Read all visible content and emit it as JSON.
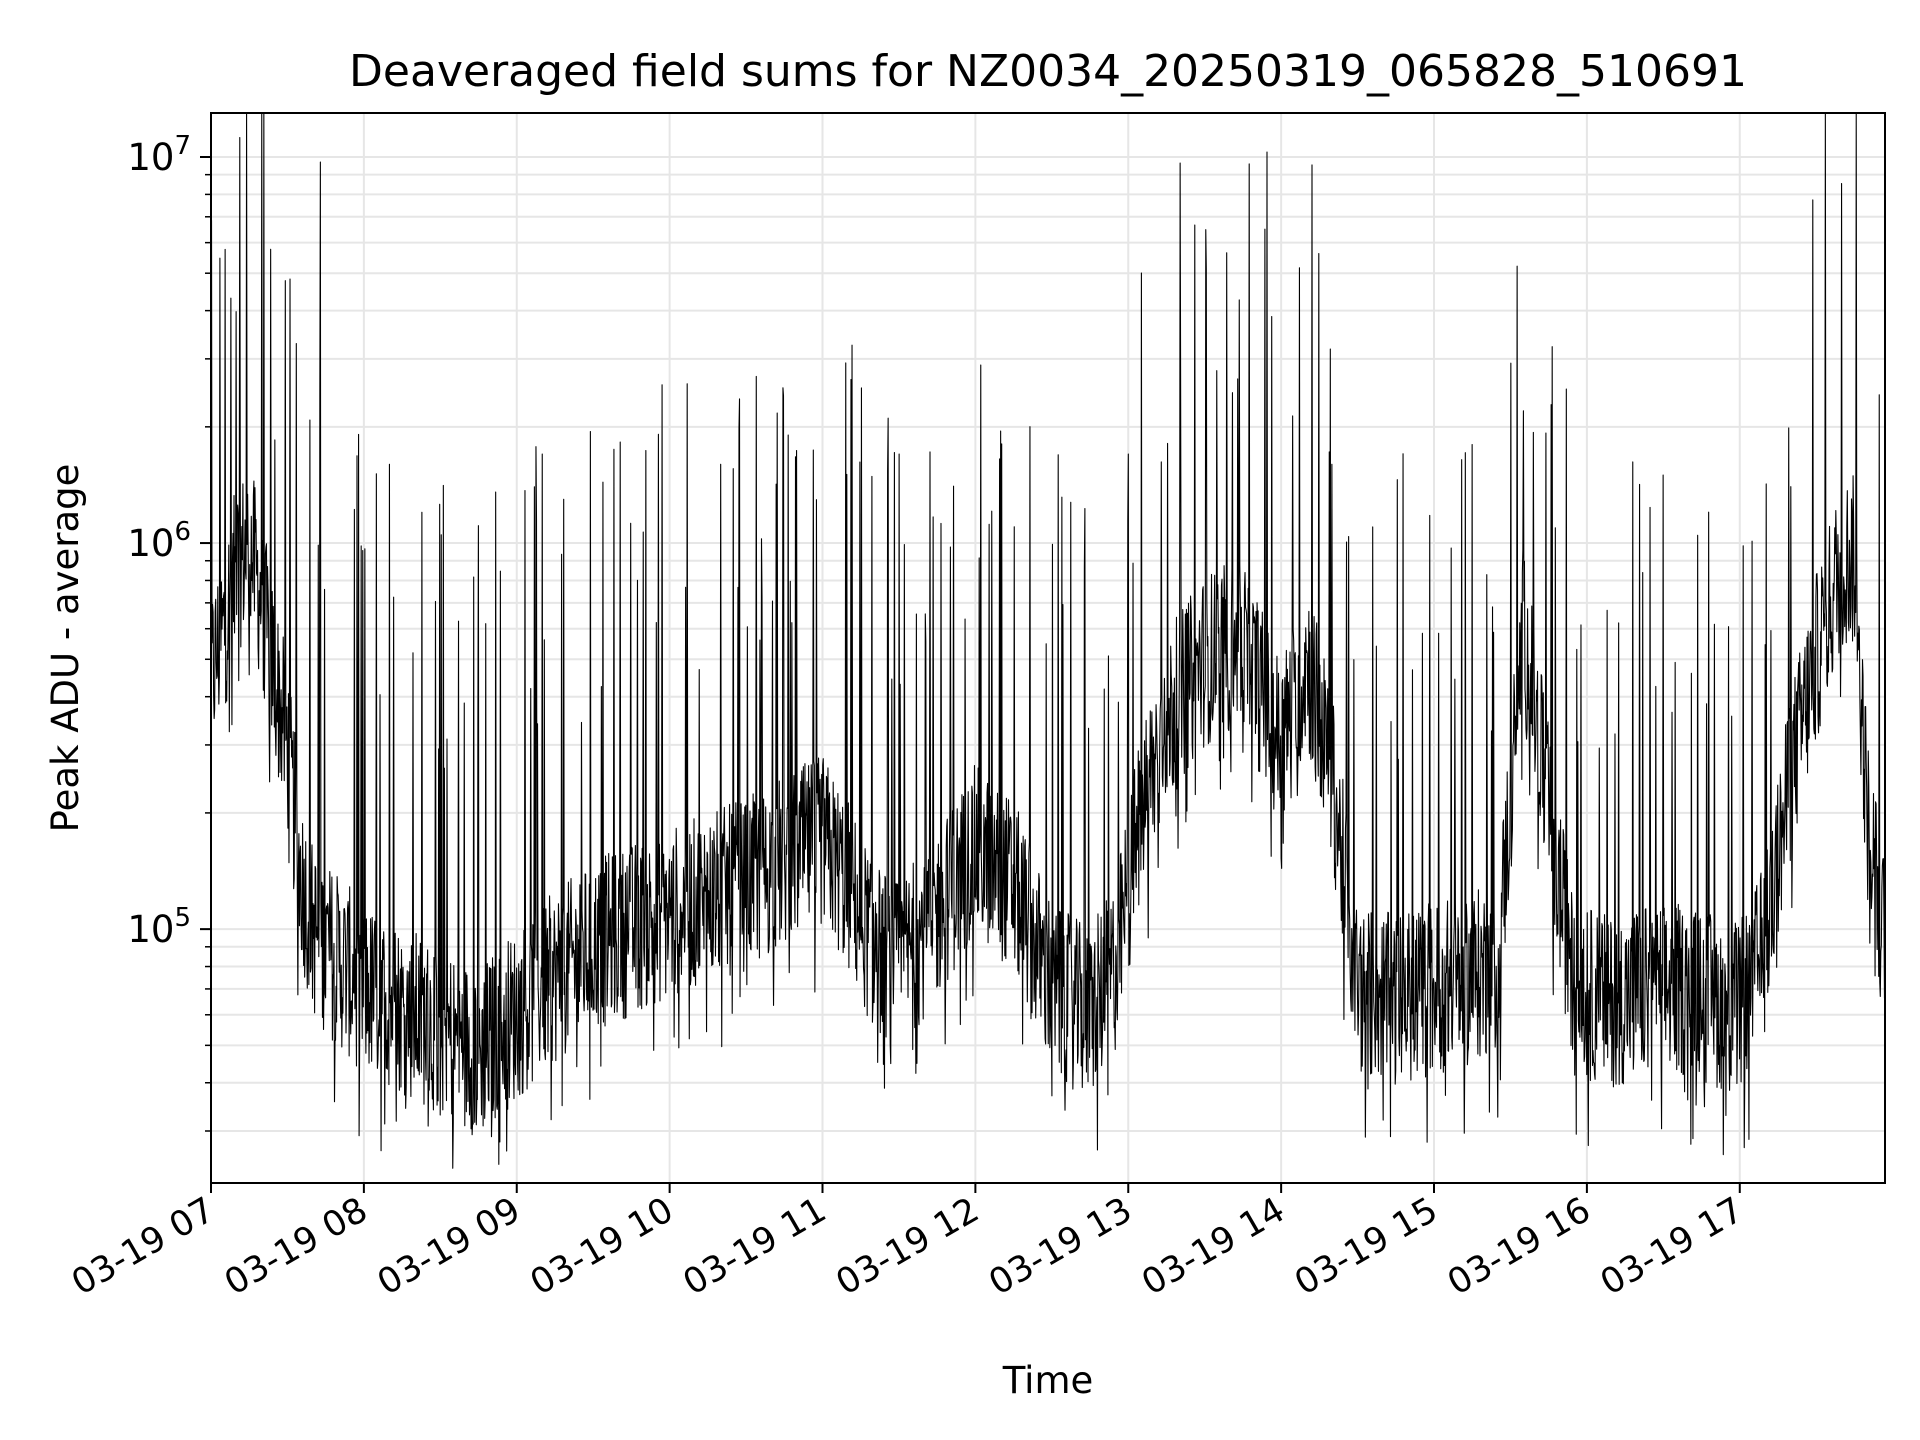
{
  "chart_data": {
    "type": "line",
    "title": "Deaveraged field sums for NZ0034_20250319_065828_510691",
    "xlabel": "Time",
    "ylabel": "Peak ADU - average",
    "yscale": "log",
    "ylim": [
      22000,
      13000000
    ],
    "xlim": [
      "2025-03-19 07:00",
      "2025-03-19 17:57"
    ],
    "grid": true,
    "line_color": "#000000",
    "grid_color": "#e6e6e6",
    "x_ticks": [
      {
        "time": "2025-03-19 07:00",
        "label": "03-19 07"
      },
      {
        "time": "2025-03-19 08:00",
        "label": "03-19 08"
      },
      {
        "time": "2025-03-19 09:00",
        "label": "03-19 09"
      },
      {
        "time": "2025-03-19 10:00",
        "label": "03-19 10"
      },
      {
        "time": "2025-03-19 11:00",
        "label": "03-19 11"
      },
      {
        "time": "2025-03-19 12:00",
        "label": "03-19 12"
      },
      {
        "time": "2025-03-19 13:00",
        "label": "03-19 13"
      },
      {
        "time": "2025-03-19 14:00",
        "label": "03-19 14"
      },
      {
        "time": "2025-03-19 15:00",
        "label": "03-19 15"
      },
      {
        "time": "2025-03-19 16:00",
        "label": "03-19 16"
      },
      {
        "time": "2025-03-19 17:00",
        "label": "03-19 17"
      }
    ],
    "y_ticks": [
      {
        "value": 100000,
        "base": "10",
        "exp": "5"
      },
      {
        "value": 1000000,
        "base": "10",
        "exp": "6"
      },
      {
        "value": 10000000,
        "base": "10",
        "exp": "7"
      }
    ],
    "series": [
      {
        "style": "dense noisy line with narrow upward spikes",
        "points": [
          [
            "07:00",
            450000
          ],
          [
            "07:05",
            600000
          ],
          [
            "07:10",
            850000
          ],
          [
            "07:15",
            1000000
          ],
          [
            "07:20",
            700000
          ],
          [
            "07:25",
            450000
          ],
          [
            "07:30",
            300000
          ],
          [
            "07:35",
            140000
          ],
          [
            "07:40",
            100000
          ],
          [
            "07:45",
            90000
          ],
          [
            "08:00",
            70000
          ],
          [
            "08:15",
            62000
          ],
          [
            "08:30",
            55000
          ],
          [
            "08:45",
            48000
          ],
          [
            "09:00",
            60000
          ],
          [
            "09:15",
            75000
          ],
          [
            "09:30",
            90000
          ],
          [
            "09:45",
            100000
          ],
          [
            "10:00",
            110000
          ],
          [
            "10:15",
            120000
          ],
          [
            "10:30",
            130000
          ],
          [
            "10:45",
            150000
          ],
          [
            "11:00",
            170000
          ],
          [
            "11:10",
            130000
          ],
          [
            "11:20",
            90000
          ],
          [
            "11:30",
            80000
          ],
          [
            "11:45",
            110000
          ],
          [
            "12:00",
            160000
          ],
          [
            "12:15",
            130000
          ],
          [
            "12:30",
            70000
          ],
          [
            "12:45",
            60000
          ],
          [
            "12:55",
            80000
          ],
          [
            "13:05",
            200000
          ],
          [
            "13:15",
            350000
          ],
          [
            "13:30",
            500000
          ],
          [
            "13:45",
            550000
          ],
          [
            "14:00",
            300000
          ],
          [
            "14:10",
            500000
          ],
          [
            "14:20",
            250000
          ],
          [
            "14:30",
            70000
          ],
          [
            "14:45",
            65000
          ],
          [
            "15:00",
            70000
          ],
          [
            "15:15",
            75000
          ],
          [
            "15:25",
            80000
          ],
          [
            "15:35",
            600000
          ],
          [
            "15:45",
            200000
          ],
          [
            "15:55",
            70000
          ],
          [
            "16:10",
            65000
          ],
          [
            "16:25",
            70000
          ],
          [
            "16:35",
            70000
          ],
          [
            "16:50",
            65000
          ],
          [
            "17:00",
            62000
          ],
          [
            "17:10",
            90000
          ],
          [
            "17:20",
            250000
          ],
          [
            "17:30",
            500000
          ],
          [
            "17:40",
            900000
          ],
          [
            "17:45",
            900000
          ],
          [
            "17:50",
            200000
          ],
          [
            "17:57",
            90000
          ]
        ],
        "spikes": [
          [
            "07:43",
            9700000
          ],
          [
            "07:25",
            1850000
          ],
          [
            "12:10",
            1950000
          ],
          [
            "15:35",
            2200000
          ],
          [
            "08:10",
            1600000
          ],
          [
            "09:10",
            1700000
          ],
          [
            "10:20",
            1600000
          ],
          [
            "11:30",
            1700000
          ],
          [
            "13:00",
            1700000
          ],
          [
            "14:20",
            1600000
          ],
          [
            "15:15",
            1800000
          ],
          [
            "16:30",
            1500000
          ],
          [
            "17:20",
            1400000
          ],
          [
            "17:42",
            1100000
          ]
        ],
        "dips": [
          [
            "08:50",
            29000
          ],
          [
            "14:43",
            29000
          ],
          [
            "12:30",
            37000
          ],
          [
            "08:30",
            33000
          ],
          [
            "16:00",
            42000
          ]
        ]
      }
    ]
  }
}
